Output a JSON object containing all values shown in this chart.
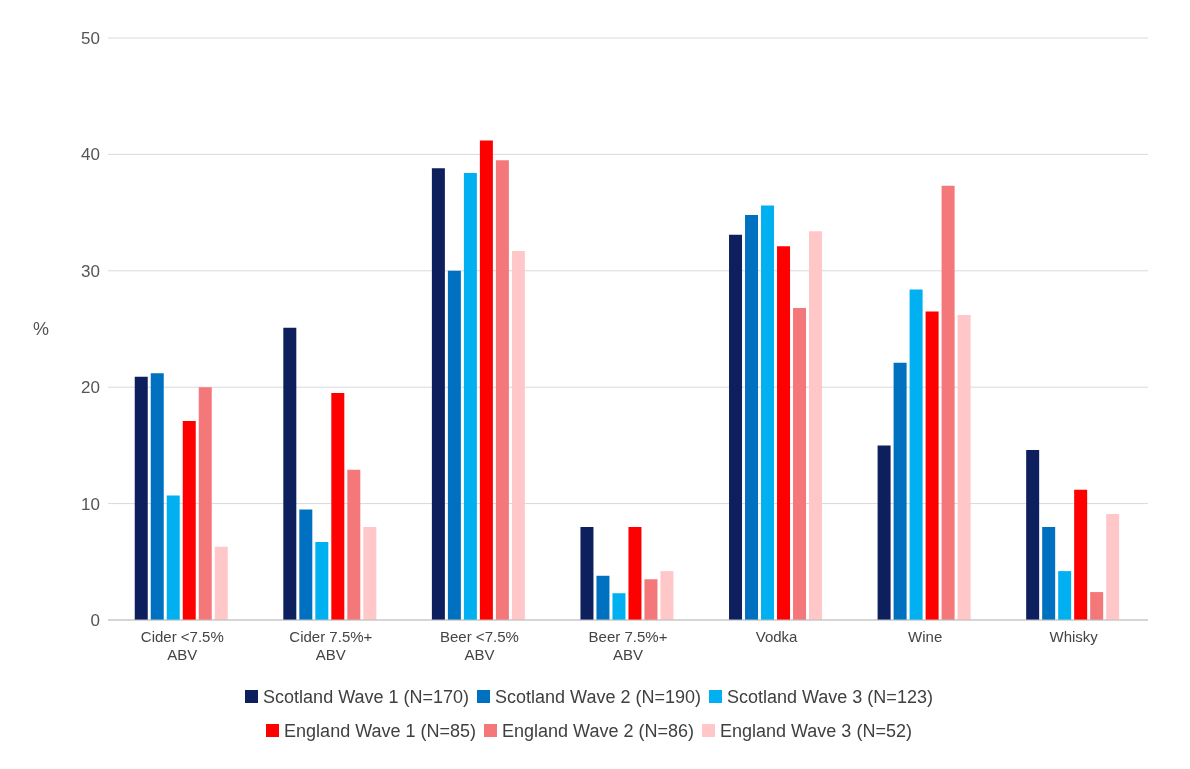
{
  "chart_data": {
    "type": "bar",
    "ylabel": "%",
    "categories": [
      "Cider <7.5% ABV",
      "Cider 7.5%+ ABV",
      "Beer <7.5% ABV",
      "Beer 7.5%+ ABV",
      "Vodka",
      "Wine",
      "Whisky"
    ],
    "series": [
      {
        "name": "Scotland Wave 1 (N=170)",
        "color": "#0d1f5c",
        "values": [
          20.9,
          25.1,
          38.8,
          8.0,
          33.1,
          15.0,
          14.6
        ]
      },
      {
        "name": "Scotland Wave 2 (N=190)",
        "color": "#0070c0",
        "values": [
          21.2,
          9.5,
          30.0,
          3.8,
          34.8,
          22.1,
          8.0
        ]
      },
      {
        "name": "Scotland Wave 3 (N=123)",
        "color": "#00b0f0",
        "values": [
          10.7,
          6.7,
          38.4,
          2.3,
          35.6,
          28.4,
          4.2
        ]
      },
      {
        "name": "England Wave 1 (N=85)",
        "color": "#ff0000",
        "values": [
          17.1,
          19.5,
          41.2,
          8.0,
          32.1,
          26.5,
          11.2
        ]
      },
      {
        "name": "England Wave 2 (N=86)",
        "color": "#f4777a",
        "values": [
          20.0,
          12.9,
          39.5,
          3.5,
          26.8,
          37.3,
          2.4
        ]
      },
      {
        "name": "England Wave 3 (N=52)",
        "color": "#ffc7c7",
        "values": [
          6.3,
          8.0,
          31.7,
          4.2,
          33.4,
          26.2,
          9.1
        ]
      }
    ],
    "ylim": [
      0,
      50
    ],
    "yticks": [
      0,
      10,
      20,
      30,
      40,
      50
    ],
    "grid": "y",
    "legend": "bottom"
  }
}
